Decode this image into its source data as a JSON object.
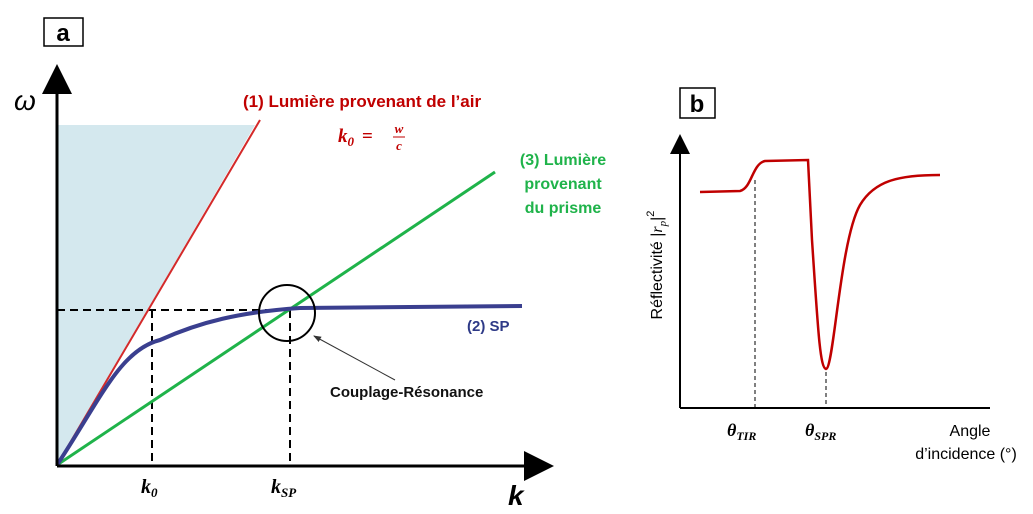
{
  "panel_a": {
    "label": "a",
    "y_axis": "ω",
    "x_axis": "k",
    "curve_1": {
      "text": "(1) Lumière provenant de l’air",
      "formula": {
        "lhs": "k",
        "lhs_sub": "0",
        "eq": "=",
        "num": "w",
        "den": "c"
      }
    },
    "curve_2": {
      "text": "(2) SP"
    },
    "curve_3": {
      "lines": [
        "(3) Lumière",
        "provenant",
        "du prisme"
      ]
    },
    "annotation": "Couplage-Résonance",
    "ticks": [
      {
        "base": "k",
        "sub": "0"
      },
      {
        "base": "k",
        "sub": "SP"
      }
    ]
  },
  "panel_b": {
    "label": "b",
    "y_axis": {
      "text": "Réflectivité |",
      "var": "r",
      "sub": "p",
      "close": "|",
      "sup": "2"
    },
    "x_axis": [
      "Angle",
      "d’incidence (°)"
    ],
    "ticks": [
      {
        "base": "θ",
        "sub": "TIR"
      },
      {
        "base": "θ",
        "sub": "SPR"
      }
    ]
  }
}
